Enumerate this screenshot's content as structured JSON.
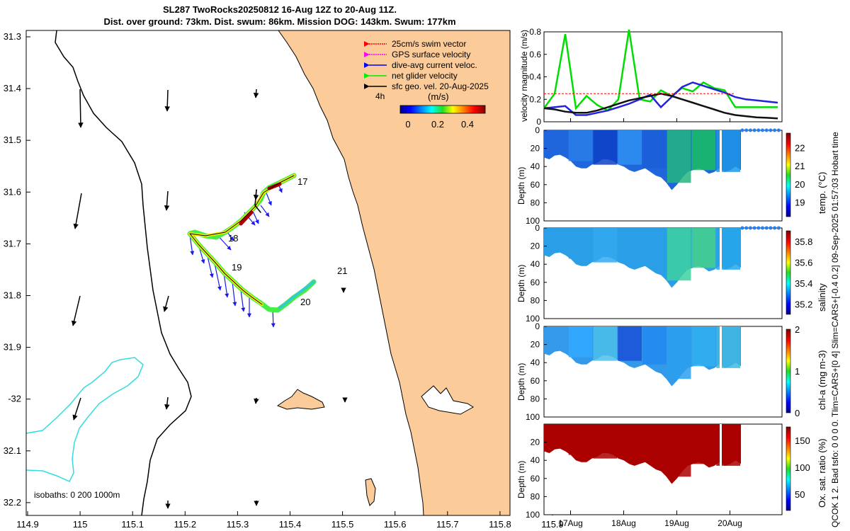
{
  "title_line1": "SL287 TwoRocks20250812 16-Aug 12Z to 20-Aug 11Z.",
  "title_line2": "Dist. over ground: 73km. Dist. swum: 86km. Mission DOG: 143km. Swum: 177km",
  "side_text": "QCOK 1  2. Bad tsfo: 0  0  0  0. Tlim=CARS+[0 4] Slim=CARS+[-0.4 0.2] 09-Sep-2025 01:57:03 Hobart time",
  "map": {
    "lon_ticks": [
      "114.9",
      "115",
      "115.1",
      "115.2",
      "115.3",
      "115.4",
      "115.5",
      "115.6",
      "115.7",
      "115.8",
      "115.9"
    ],
    "lat_ticks": [
      "31.3",
      "31.4",
      "31.5",
      "31.6",
      "31.7",
      "31.8",
      "31.9",
      "-32",
      "32.1",
      "32.2"
    ],
    "legend": [
      {
        "label": "25cm/s swim vector",
        "color": "#ff0000"
      },
      {
        "label": "GPS surface velocity",
        "color": "#ff00ff"
      },
      {
        "label": "dive-avg current veloc.",
        "color": "#0000ff"
      },
      {
        "label": "net glider velocity",
        "color": "#00ee00"
      },
      {
        "label": "sfc geo. vel. 20-Aug-2025",
        "color": "#000000"
      }
    ],
    "legend_4h": "4h",
    "colorbar_units": "(m/s)",
    "colorbar_ticks": [
      "0",
      "0.2",
      "0.4"
    ],
    "day_labels": [
      "17",
      "18",
      "19",
      "20",
      "21"
    ],
    "isobaths_label": "isobaths: 0   200  1000m",
    "colors": {
      "land": "#fbcb9a",
      "coast": "#000000",
      "isobath_200": "#000000",
      "isobath_1000": "#33dddd"
    }
  },
  "chart_data": [
    {
      "type": "line",
      "ylabel": "velocity magnitude (m/s)",
      "ylim": [
        0,
        0.8
      ],
      "yticks": [
        "0",
        "0.2",
        "0.4",
        "0.6",
        "0.8"
      ],
      "xlim_days": [
        16.5,
        20.98
      ],
      "x": [
        16.5,
        16.7,
        16.9,
        17.1,
        17.3,
        17.5,
        17.7,
        17.9,
        18.1,
        18.3,
        18.5,
        18.7,
        18.9,
        19.1,
        19.3,
        19.5,
        19.7,
        19.9,
        20.1,
        20.3,
        20.5,
        20.7,
        20.9
      ],
      "series": [
        {
          "name": "net glider velocity",
          "color": "#00dd00",
          "values": [
            0.12,
            0.25,
            0.78,
            0.12,
            0.23,
            0.15,
            0.1,
            0.2,
            0.82,
            0.2,
            0.18,
            0.28,
            0.23,
            0.3,
            0.27,
            0.35,
            0.3,
            0.28,
            0.13,
            0.13,
            0.13,
            0.13,
            0.13
          ]
        },
        {
          "name": "dive-avg current veloc.",
          "color": "#2222dd",
          "values": [
            0.12,
            0.13,
            0.14,
            0.06,
            0.06,
            0.08,
            0.1,
            0.13,
            0.16,
            0.2,
            0.24,
            0.13,
            0.22,
            0.31,
            0.35,
            0.32,
            0.29,
            0.26,
            0.22,
            0.2,
            0.19,
            0.18,
            0.17
          ]
        },
        {
          "name": "sfc geo. vel.",
          "color": "#111111",
          "values": [
            0.12,
            0.11,
            0.09,
            0.08,
            0.08,
            0.1,
            0.13,
            0.16,
            0.19,
            0.21,
            0.23,
            0.25,
            0.23,
            0.2,
            0.17,
            0.14,
            0.11,
            0.08,
            0.06,
            0.05,
            0.04,
            0.035,
            0.03
          ]
        },
        {
          "name": "25cm/s swim vector",
          "color": "#ff0000",
          "values": [
            0.25,
            0.25,
            0.25,
            0.25,
            0.25,
            0.25,
            0.25,
            0.25,
            0.25,
            0.25,
            0.25,
            0.25,
            0.25,
            0.25,
            0.25,
            0.25,
            0.25,
            0.25,
            0.25,
            null,
            null,
            null,
            null
          ]
        }
      ]
    },
    {
      "type": "scatter",
      "ylabel": "Depth (m)",
      "cbar_label": "temp. (°C)",
      "yticks": [
        "0",
        "20",
        "40",
        "60",
        "80",
        "100"
      ],
      "cbar_ticks": [
        "19",
        "20",
        "21",
        "22"
      ],
      "cbar_range": [
        18.2,
        22.8
      ]
    },
    {
      "type": "scatter",
      "ylabel": "Depth (m)",
      "cbar_label": "salinity",
      "yticks": [
        "0",
        "20",
        "40",
        "60",
        "80",
        "100"
      ],
      "cbar_ticks": [
        "35.2",
        "35.4",
        "35.6",
        "35.8"
      ],
      "cbar_range": [
        35.1,
        35.9
      ]
    },
    {
      "type": "scatter",
      "ylabel": "Depth (m)",
      "cbar_label": "chl-a  (mg m-3)",
      "yticks": [
        "0",
        "20",
        "40",
        "60",
        "80",
        "100"
      ],
      "cbar_ticks": [
        "0",
        "1",
        "2"
      ],
      "cbar_range": [
        0,
        2
      ]
    },
    {
      "type": "scatter",
      "ylabel": "Depth (m)",
      "cbar_label": "Ox. sat. ratio (%)",
      "yticks": [
        "20",
        "40",
        "60",
        "80",
        "100"
      ],
      "cbar_ticks": [
        "50",
        "100",
        "150"
      ],
      "cbar_range": [
        20,
        175
      ]
    }
  ],
  "time_axis": {
    "ticks": [
      "17Aug",
      "18Aug",
      "19Aug",
      "20Aug"
    ]
  }
}
